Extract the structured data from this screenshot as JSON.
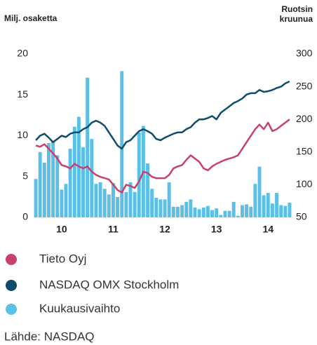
{
  "chart_data": {
    "type": "bar-line",
    "y_label": "Milj. osaketta",
    "y2_label": [
      "Ruotsin",
      "kruunua"
    ],
    "categories": [
      null,
      null,
      null,
      null,
      null,
      null,
      "10",
      null,
      null,
      null,
      null,
      null,
      null,
      null,
      null,
      null,
      null,
      null,
      "11",
      null,
      null,
      null,
      null,
      null,
      null,
      null,
      null,
      null,
      null,
      null,
      "12",
      null,
      null,
      null,
      null,
      null,
      null,
      null,
      null,
      null,
      null,
      null,
      "13",
      null,
      null,
      null,
      null,
      null,
      null,
      null,
      null,
      null,
      null,
      null,
      "14",
      null,
      null,
      null,
      null,
      null
    ],
    "series": [
      {
        "name": "Tieto Oyj",
        "color": "#c8406e",
        "type": "line",
        "axis": "y2",
        "values": [
          160,
          158,
          162,
          155,
          148,
          140,
          130,
          128,
          125,
          132,
          128,
          125,
          128,
          120,
          115,
          112,
          110,
          108,
          100,
          92,
          88,
          100,
          98,
          95,
          105,
          120,
          118,
          112,
          110,
          110,
          110,
          115,
          125,
          128,
          130,
          138,
          145,
          140,
          135,
          125,
          122,
          128,
          132,
          135,
          138,
          140,
          142,
          145,
          155,
          165,
          175,
          185,
          192,
          185,
          195,
          182,
          185,
          190,
          195,
          200
        ]
      },
      {
        "name": "NASDAQ OMX Stockholm",
        "color": "#0f4c6b",
        "type": "line",
        "axis": "y2",
        "values": [
          168,
          175,
          178,
          172,
          165,
          170,
          175,
          173,
          178,
          180,
          180,
          185,
          188,
          195,
          198,
          195,
          190,
          180,
          170,
          160,
          155,
          165,
          168,
          175,
          182,
          185,
          182,
          178,
          170,
          168,
          172,
          175,
          178,
          180,
          180,
          185,
          188,
          195,
          200,
          200,
          202,
          205,
          200,
          210,
          215,
          220,
          225,
          228,
          232,
          238,
          240,
          240,
          245,
          242,
          243,
          245,
          248,
          250,
          255,
          258
        ]
      },
      {
        "name": "Kuukausivaihto",
        "color": "#5bc0e8",
        "type": "bar",
        "axis": "y",
        "values": [
          4.7,
          8.0,
          6.7,
          9.1,
          9.3,
          7.6,
          3.4,
          4.1,
          8.4,
          11.1,
          12.3,
          8.6,
          17.1,
          9.6,
          4.1,
          4.3,
          3.5,
          2.8,
          4.2,
          2.5,
          17.9,
          3.1,
          4.3,
          3.1,
          10.4,
          11.2,
          6.6,
          3.5,
          2.4,
          2.2,
          2.2,
          4.3,
          1.3,
          1.3,
          1.5,
          1.9,
          2.2,
          1.2,
          1.0,
          1.2,
          1.4,
          0.9,
          1.1,
          0.3,
          0.8,
          0.8,
          1.9,
          0.2,
          1.5,
          1.6,
          1.3,
          4.1,
          6.2,
          2.7,
          3.0,
          1.7,
          3.0,
          1.5,
          1.4,
          1.8
        ]
      }
    ],
    "ylim": [
      0,
      20
    ],
    "yticks": [
      0,
      5,
      10,
      15,
      20
    ],
    "y2lim": [
      50,
      300
    ],
    "y2ticks": [
      50,
      100,
      150,
      200,
      250,
      300
    ],
    "source": "Lähde: NASDAQ"
  }
}
